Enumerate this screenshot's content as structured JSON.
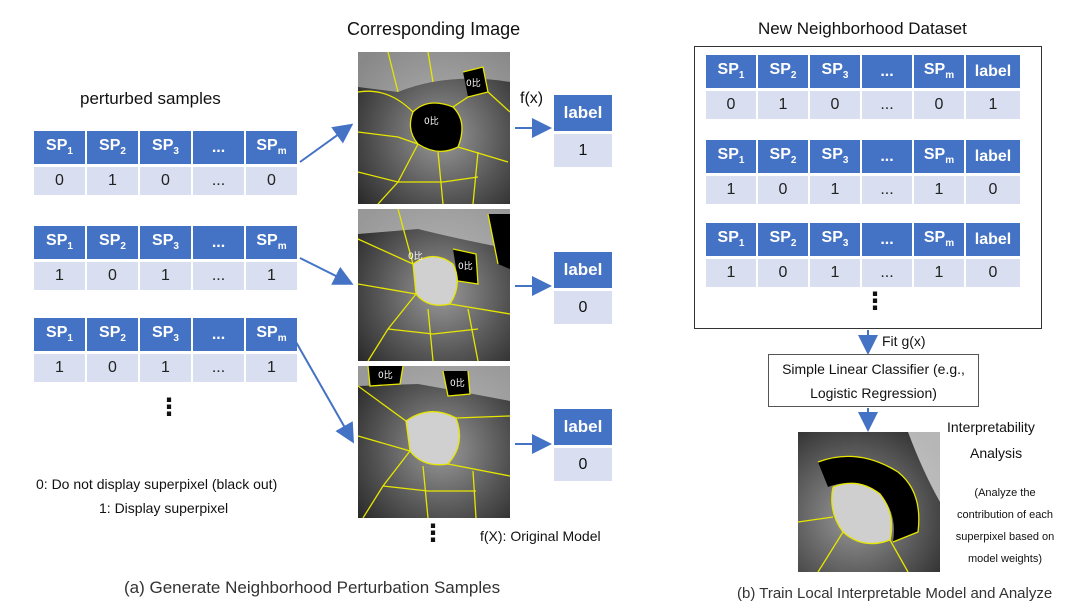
{
  "left": {
    "title": "perturbed samples",
    "header": [
      "SP1",
      "SP2",
      "SP3",
      "...",
      "SPm"
    ],
    "rows": [
      [
        "0",
        "1",
        "0",
        "...",
        "0"
      ],
      [
        "1",
        "0",
        "1",
        "...",
        "1"
      ],
      [
        "1",
        "0",
        "1",
        "...",
        "1"
      ]
    ],
    "vdots": "⋮",
    "legend_0": "0:  Do not display superpixel (black out)",
    "legend_1": "1:  Display superpixel",
    "caption": "(a) Generate Neighborhood Perturbation Samples"
  },
  "middle": {
    "title": "Corresponding Image",
    "fx": "f(x)",
    "labels": [
      {
        "header": "label",
        "value": "1"
      },
      {
        "header": "label",
        "value": "0"
      },
      {
        "header": "label",
        "value": "0"
      }
    ],
    "vdots": "⋮",
    "model_note": "f(X):  Original Model",
    "image_marks": [
      "0比",
      "0比"
    ]
  },
  "right": {
    "title": "New Neighborhood Dataset",
    "header": [
      "SP1",
      "SP2",
      "SP3",
      "...",
      "SPm",
      "label"
    ],
    "rows": [
      [
        "0",
        "1",
        "0",
        "...",
        "0",
        "1"
      ],
      [
        "1",
        "0",
        "1",
        "...",
        "1",
        "0"
      ],
      [
        "1",
        "0",
        "1",
        "...",
        "1",
        "0"
      ]
    ],
    "vdots": "⋮",
    "fit": "Fit g(x)",
    "classifier_line1": "Simple Linear Classifier (e.g.,",
    "classifier_line2": "Logistic Regression)",
    "analysis_title_1": "Interpretability",
    "analysis_title_2": "Analysis",
    "analysis_note": [
      "(Analyze the",
      "contribution of each",
      "superpixel based on",
      "model weights)"
    ],
    "caption": "(b) Train Local Interpretable Model and Analyze"
  },
  "colors": {
    "header": "#4472c4",
    "cell": "#d9dff0",
    "arrow": "#4472c4",
    "superpixel_edge": "#e6e600"
  }
}
